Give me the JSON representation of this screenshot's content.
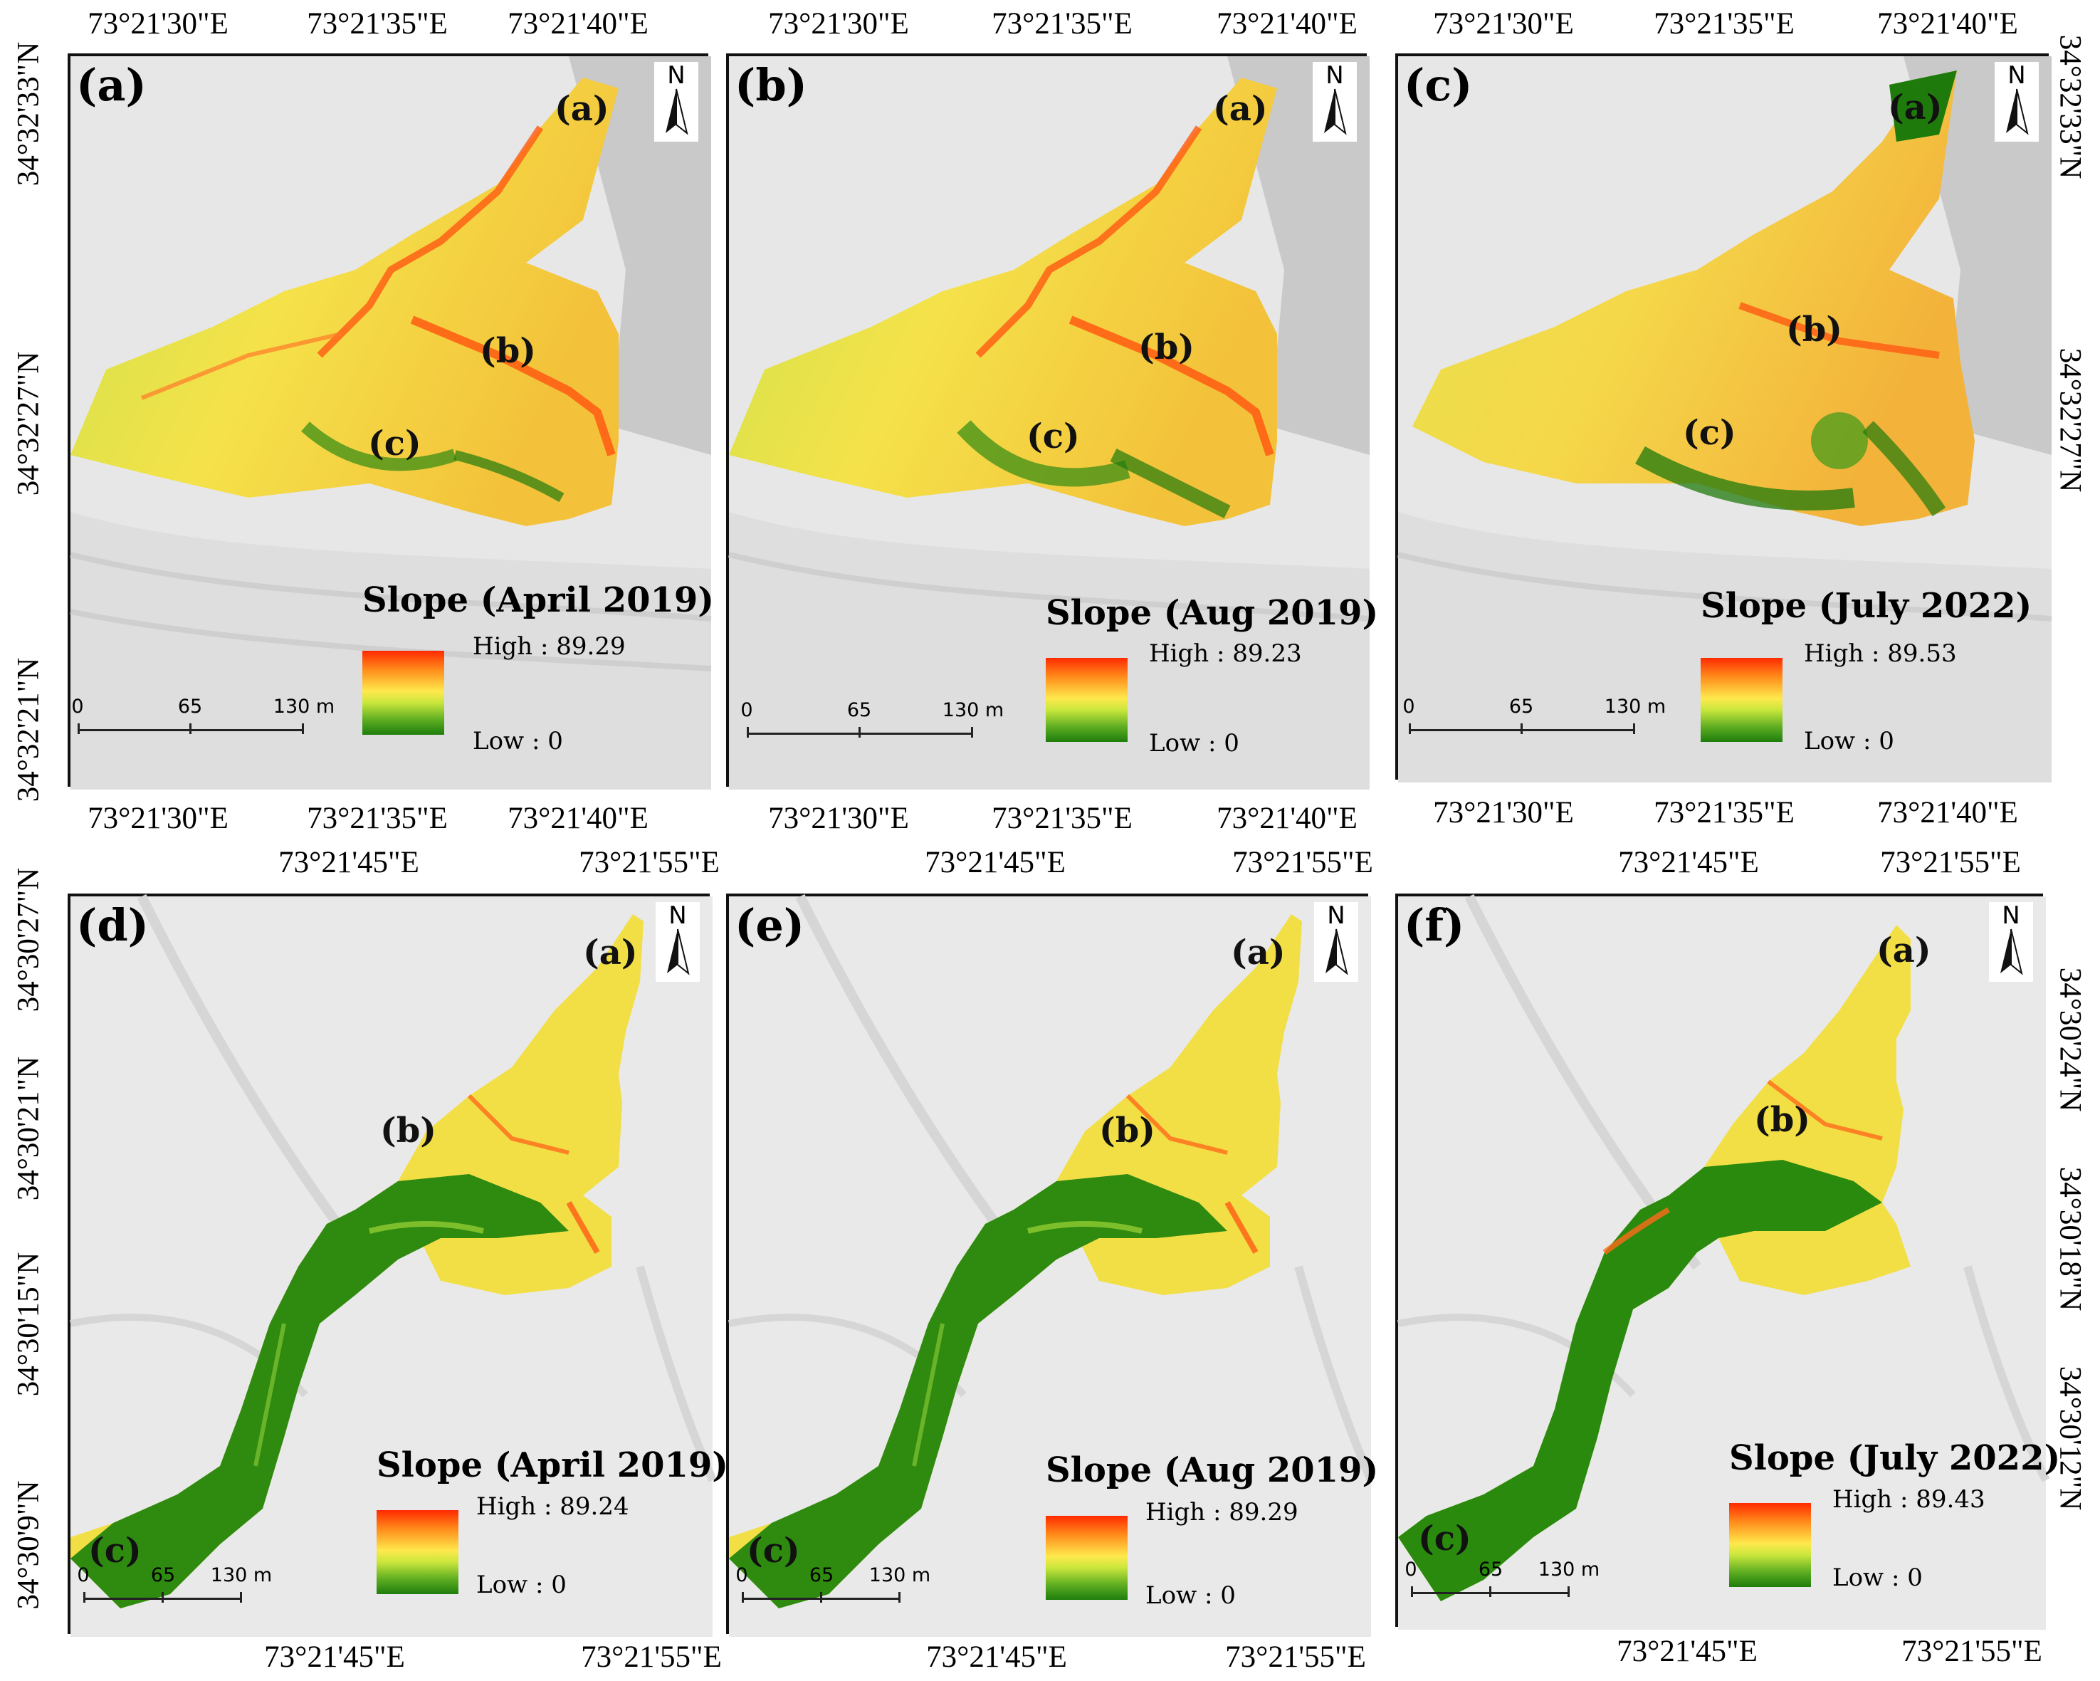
{
  "top_row": {
    "coords_top": [
      [
        "73°21'30\"E",
        "73°21'35\"E",
        "73°21'40\"E"
      ],
      [
        "73°21'30\"E",
        "73°21'35\"E",
        "73°21'40\"E"
      ],
      [
        "73°21'30\"E",
        "73°21'35\"E",
        "73°21'40\"E"
      ]
    ],
    "coords_bottom": [
      [
        "73°21'30\"E",
        "73°21'35\"E",
        "73°21'40\"E"
      ],
      [
        "73°21'30\"E",
        "73°21'35\"E",
        "73°21'40\"E"
      ],
      [
        "73°21'30\"E",
        "73°21'35\"E",
        "73°21'40\"E"
      ]
    ],
    "coords_left": [
      "34°32'33\"N",
      "34°32'27\"N",
      "34°32'21\"N"
    ],
    "coords_right": [
      "34°32'33\"N",
      "34°32'27\"N"
    ]
  },
  "bottom_row": {
    "coords_top": [
      [
        "73°21'45\"E",
        "73°21'55\"E"
      ],
      [
        "73°21'45\"E",
        "73°21'55\"E"
      ],
      [
        "73°21'45\"E",
        "73°21'55\"E"
      ]
    ],
    "coords_bottom": [
      [
        "73°21'45\"E",
        "73°21'55\"E"
      ],
      [
        "73°21'45\"E",
        "73°21'55\"E"
      ],
      [
        "73°21'45\"E",
        "73°21'55\"E"
      ]
    ],
    "coords_left": [
      "34°30'27\"N",
      "34°30'21\"N",
      "34°30'15\"N",
      "34°30'9\"N"
    ],
    "coords_right": [
      "34°30'24\"N",
      "34°30'18\"N",
      "34°30'12\"N"
    ]
  },
  "panels": [
    {
      "id": "(a)",
      "legend_title": "Slope (April 2019)",
      "high": "High : 89.29",
      "low": "Low : 0",
      "features": [
        "(a)",
        "(b)",
        "(c)"
      ]
    },
    {
      "id": "(b)",
      "legend_title": "Slope (Aug 2019)",
      "high": "High : 89.23",
      "low": "Low : 0",
      "features": [
        "(a)",
        "(b)",
        "(c)"
      ]
    },
    {
      "id": "(c)",
      "legend_title": "Slope (July 2022)",
      "high": "High : 89.53",
      "low": "Low : 0",
      "features": [
        "(a)",
        "(b)",
        "(c)"
      ]
    },
    {
      "id": "(d)",
      "legend_title": "Slope (April 2019)",
      "high": "High : 89.24",
      "low": "Low : 0",
      "features": [
        "(a)",
        "(b)",
        "(c)"
      ]
    },
    {
      "id": "(e)",
      "legend_title": "Slope (Aug 2019)",
      "high": "High : 89.29",
      "low": "Low : 0",
      "features": [
        "(a)",
        "(b)",
        "(c)"
      ]
    },
    {
      "id": "(f)",
      "legend_title": "Slope (July 2022)",
      "high": "High : 89.43",
      "low": "Low : 0",
      "features": [
        "(a)",
        "(b)",
        "(c)"
      ]
    }
  ],
  "north_label": "N",
  "scale_bar": {
    "ticks": [
      "0",
      "65",
      "130 m"
    ]
  },
  "colors": {
    "high": "#ff2a00",
    "mid": "#ffe94d",
    "low": "#1e7d0c",
    "hillshade": "#e9e9e9"
  }
}
